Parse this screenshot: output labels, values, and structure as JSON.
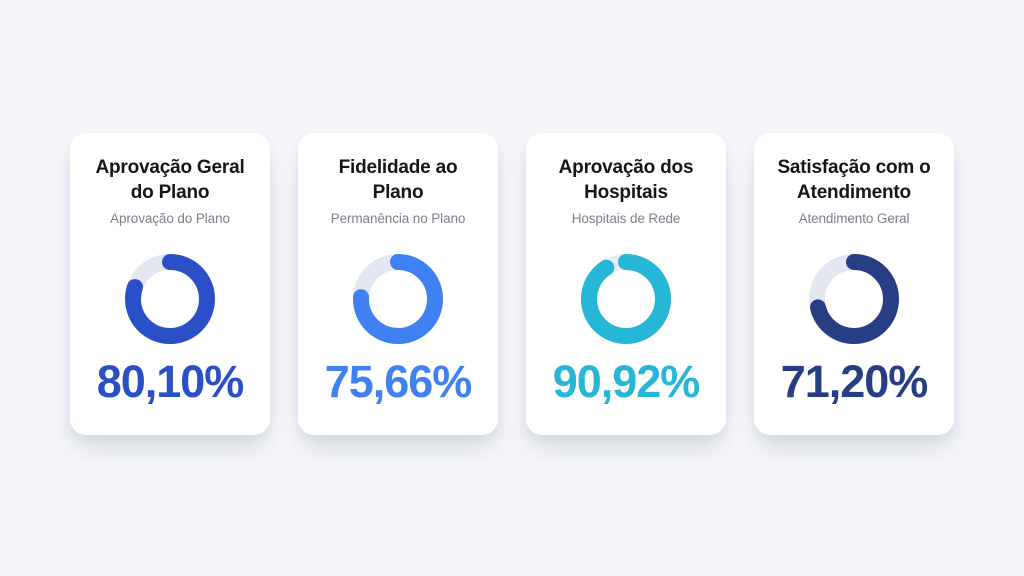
{
  "page": {
    "background_color": "#f3f5f9",
    "card_background": "#ffffff"
  },
  "chart_data": [
    {
      "type": "donut",
      "title": "Aprovação Geral do Plano",
      "subtitle": "Aprovação do Plano",
      "value": 80.1,
      "value_label": "80,10%",
      "color": "#2b4fc6",
      "track_color": "#e3e7f1",
      "max": 100,
      "start_angle_deg": 0,
      "direction": "clockwise"
    },
    {
      "type": "donut",
      "title": "Fidelidade ao Plano",
      "subtitle": "Permanência no Plano",
      "value": 75.66,
      "value_label": "75,66%",
      "color": "#3f80f2",
      "track_color": "#e3e7f1",
      "max": 100,
      "start_angle_deg": 0,
      "direction": "clockwise"
    },
    {
      "type": "donut",
      "title": "Aprovação dos Hospitais",
      "subtitle": "Hospitais de Rede",
      "value": 90.92,
      "value_label": "90,92%",
      "color": "#26b6d6",
      "track_color": "#e7ebf3",
      "max": 100,
      "start_angle_deg": 0,
      "direction": "clockwise"
    },
    {
      "type": "donut",
      "title": "Satisfação com o Atendimento",
      "subtitle": "Atendimento Geral",
      "value": 71.2,
      "value_label": "71,20%",
      "color": "#283e84",
      "track_color": "#e3e7f1",
      "max": 100,
      "start_angle_deg": 0,
      "direction": "clockwise"
    }
  ]
}
